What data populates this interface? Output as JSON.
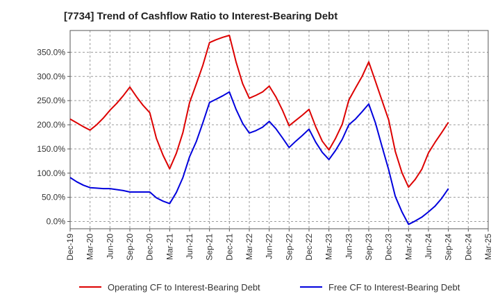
{
  "chart_data": {
    "type": "line",
    "title": "[7734]  Trend of Cashflow Ratio to Interest-Bearing Debt",
    "xlabel": "",
    "ylabel": "",
    "x_ticks": [
      "Dec-19",
      "Mar-20",
      "Jun-20",
      "Sep-20",
      "Dec-20",
      "Mar-21",
      "Jun-21",
      "Sep-21",
      "Dec-21",
      "Mar-22",
      "Jun-22",
      "Sep-22",
      "Dec-22",
      "Mar-23",
      "Jun-23",
      "Sep-23",
      "Dec-23",
      "Mar-24",
      "Jun-24",
      "Sep-24",
      "Dec-24",
      "Mar-25"
    ],
    "y_ticks": [
      "0.0%",
      "50.0%",
      "100.0%",
      "150.0%",
      "200.0%",
      "250.0%",
      "300.0%",
      "350.0%"
    ],
    "ylim": [
      -15,
      395
    ],
    "grid": true,
    "legend_position": "bottom",
    "series": [
      {
        "name": "Operating CF to Interest-Bearing Debt",
        "color": "#dd0000",
        "x": [
          "Dec-19",
          "Jan-20",
          "Feb-20",
          "Mar-20",
          "Apr-20",
          "May-20",
          "Jun-20",
          "Jul-20",
          "Aug-20",
          "Sep-20",
          "Oct-20",
          "Nov-20",
          "Dec-20",
          "Jan-21",
          "Feb-21",
          "Mar-21",
          "Apr-21",
          "May-21",
          "Jun-21",
          "Jul-21",
          "Aug-21",
          "Sep-21",
          "Oct-21",
          "Nov-21",
          "Dec-21",
          "Jan-22",
          "Feb-22",
          "Mar-22",
          "Apr-22",
          "May-22",
          "Jun-22",
          "Jul-22",
          "Aug-22",
          "Sep-22",
          "Oct-22",
          "Nov-22",
          "Dec-22",
          "Jan-23",
          "Feb-23",
          "Mar-23",
          "Apr-23",
          "May-23",
          "Jun-23",
          "Jul-23",
          "Aug-23",
          "Sep-23",
          "Oct-23",
          "Nov-23",
          "Dec-23",
          "Jan-24",
          "Feb-24",
          "Mar-24",
          "Apr-24",
          "May-24",
          "Jun-24",
          "Jul-24",
          "Aug-24",
          "Sep-24"
        ],
        "values": [
          212,
          204,
          196,
          189,
          200,
          214,
          230,
          244,
          260,
          278,
          258,
          240,
          225,
          172,
          137,
          109,
          141,
          184,
          246,
          284,
          323,
          370,
          376,
          381,
          385,
          330,
          285,
          255,
          261,
          268,
          280,
          258,
          230,
          198,
          209,
          220,
          232,
          196,
          166,
          148,
          172,
          201,
          251,
          276,
          300,
          330,
          290,
          250,
          210,
          145,
          101,
          71,
          87,
          108,
          142,
          164,
          184,
          205
        ],
        "values_note": ""
      },
      {
        "name": "Free CF to Interest-Bearing Debt",
        "color": "#0000dd",
        "x": [
          "Dec-19",
          "Jan-20",
          "Feb-20",
          "Mar-20",
          "Apr-20",
          "May-20",
          "Jun-20",
          "Jul-20",
          "Aug-20",
          "Sep-20",
          "Oct-20",
          "Nov-20",
          "Dec-20",
          "Jan-21",
          "Feb-21",
          "Mar-21",
          "Apr-21",
          "May-21",
          "Jun-21",
          "Jul-21",
          "Aug-21",
          "Sep-21",
          "Oct-21",
          "Nov-21",
          "Dec-21",
          "Jan-22",
          "Feb-22",
          "Mar-22",
          "Apr-22",
          "May-22",
          "Jun-22",
          "Jul-22",
          "Aug-22",
          "Sep-22",
          "Oct-22",
          "Nov-22",
          "Dec-22",
          "Jan-23",
          "Feb-23",
          "Mar-23",
          "Apr-23",
          "May-23",
          "Jun-23",
          "Jul-23",
          "Aug-23",
          "Sep-23",
          "Oct-23",
          "Nov-23",
          "Dec-23",
          "Jan-24",
          "Feb-24",
          "Mar-24",
          "Apr-24",
          "May-24",
          "Jun-24",
          "Jul-24",
          "Aug-24",
          "Sep-24"
        ],
        "values": [
          91,
          82,
          75,
          70,
          69,
          68,
          68,
          66,
          64,
          61,
          61,
          61,
          61,
          49,
          42,
          37,
          60,
          91,
          134,
          165,
          204,
          246,
          253,
          260,
          268,
          232,
          203,
          183,
          188,
          195,
          207,
          192,
          173,
          153,
          166,
          178,
          191,
          164,
          143,
          128,
          147,
          170,
          200,
          212,
          227,
          243,
          204,
          155,
          107,
          52,
          20,
          -6,
          1,
          9,
          20,
          32,
          48,
          68
        ]
      }
    ]
  }
}
